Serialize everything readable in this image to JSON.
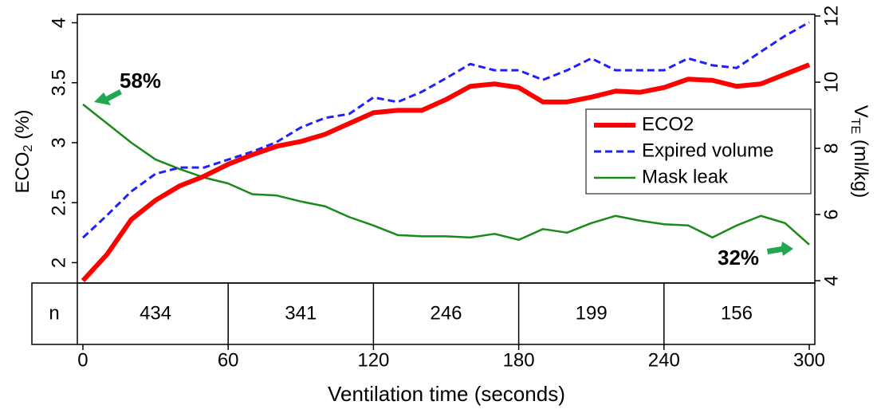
{
  "chart_data": {
    "type": "line",
    "x": [
      0,
      10,
      20,
      30,
      40,
      50,
      60,
      70,
      80,
      90,
      100,
      110,
      120,
      130,
      140,
      150,
      160,
      170,
      180,
      190,
      200,
      210,
      220,
      230,
      240,
      250,
      260,
      270,
      280,
      290,
      300
    ],
    "xlabel": "Ventilation time (seconds)",
    "ylabel": [
      "ECO",
      "2",
      " (%)"
    ],
    "y2label": [
      "V",
      "TE",
      " (ml/kg)"
    ],
    "xlim": [
      -2.3,
      302.3
    ],
    "xticks": [
      0,
      60,
      120,
      180,
      240,
      300
    ],
    "ylim": [
      1.83,
      4.07
    ],
    "yticks": [
      2,
      2.5,
      3,
      3.5,
      4
    ],
    "y2lim": [
      3.93,
      12.05
    ],
    "y2ticks": [
      4,
      6,
      8,
      10,
      12
    ],
    "legend": "right",
    "series": [
      {
        "name": "ECO2",
        "color": "#ff0000",
        "style": "solid",
        "width": 6,
        "values": [
          1.85,
          2.07,
          2.36,
          2.52,
          2.64,
          2.72,
          2.82,
          2.9,
          2.97,
          3.01,
          3.07,
          3.16,
          3.25,
          3.27,
          3.27,
          3.36,
          3.47,
          3.49,
          3.46,
          3.34,
          3.34,
          3.38,
          3.43,
          3.42,
          3.46,
          3.53,
          3.52,
          3.47,
          3.49,
          3.57,
          3.65
        ]
      },
      {
        "name": "Expired volume",
        "color": "#2020ff",
        "style": "dashed",
        "width": 3,
        "axis": "y2",
        "values": [
          5.3,
          5.98,
          6.7,
          7.23,
          7.42,
          7.42,
          7.66,
          7.9,
          8.19,
          8.63,
          8.92,
          9.04,
          9.54,
          9.4,
          9.71,
          10.12,
          10.55,
          10.36,
          10.36,
          10.07,
          10.36,
          10.72,
          10.36,
          10.36,
          10.36,
          10.72,
          10.51,
          10.43,
          10.92,
          11.4,
          11.81
        ]
      },
      {
        "name": "Mask leak",
        "color": "#1a8a1a",
        "style": "solid",
        "width": 2.5,
        "values": [
          3.32,
          3.16,
          3.0,
          2.86,
          2.78,
          2.71,
          2.66,
          2.57,
          2.56,
          2.51,
          2.47,
          2.38,
          2.31,
          2.23,
          2.22,
          2.22,
          2.21,
          2.24,
          2.19,
          2.28,
          2.25,
          2.33,
          2.39,
          2.35,
          2.32,
          2.31,
          2.21,
          2.31,
          2.39,
          2.33,
          2.15
        ]
      }
    ],
    "annotations": [
      "58%",
      "32%"
    ],
    "table": {
      "label": "n",
      "values": [
        "434",
        "341",
        "246",
        "199",
        "156"
      ]
    }
  }
}
